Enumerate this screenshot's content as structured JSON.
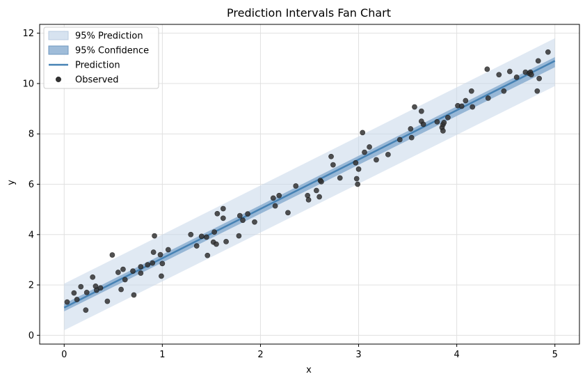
{
  "chart_data": {
    "type": "scatter",
    "title": "Prediction Intervals Fan Chart",
    "xlabel": "x",
    "ylabel": "y",
    "xlim": [
      -0.25,
      5.25
    ],
    "ylim": [
      -0.35,
      12.35
    ],
    "xticks": [
      0,
      1,
      2,
      3,
      4,
      5
    ],
    "yticks": [
      0,
      2,
      4,
      6,
      8,
      10,
      12
    ],
    "grid": true,
    "legend_position": "top-left",
    "colors": {
      "prediction_band": "#c6d7e9",
      "confidence_band": "#7fa6cc",
      "prediction_line": "#4682b4",
      "observed": "#333333"
    },
    "fit": {
      "intercept": 1.1,
      "slope": 1.96
    },
    "prediction_interval": {
      "x": [
        0,
        5
      ],
      "lower": [
        0.2,
        9.9
      ],
      "upper": [
        2.05,
        11.8
      ]
    },
    "confidence_interval": {
      "x": [
        0,
        5
      ],
      "lower": [
        0.95,
        10.65
      ],
      "upper": [
        1.25,
        11.05
      ]
    },
    "legend": [
      {
        "label": "95% Prediction",
        "kind": "band-light"
      },
      {
        "label": "95% Confidence",
        "kind": "band-dark"
      },
      {
        "label": "Prediction",
        "kind": "line"
      },
      {
        "label": "Observed",
        "kind": "marker"
      }
    ],
    "series": [
      {
        "name": "Observed",
        "points": [
          [
            0.03,
            1.32
          ],
          [
            0.1,
            1.68
          ],
          [
            0.13,
            1.42
          ],
          [
            0.17,
            1.93
          ],
          [
            0.22,
            1.0
          ],
          [
            0.23,
            1.7
          ],
          [
            0.29,
            2.31
          ],
          [
            0.32,
            1.95
          ],
          [
            0.33,
            1.79
          ],
          [
            0.37,
            1.88
          ],
          [
            0.44,
            1.35
          ],
          [
            0.49,
            3.19
          ],
          [
            0.55,
            2.5
          ],
          [
            0.58,
            1.82
          ],
          [
            0.6,
            2.62
          ],
          [
            0.62,
            2.21
          ],
          [
            0.7,
            2.55
          ],
          [
            0.71,
            1.6
          ],
          [
            0.78,
            2.72
          ],
          [
            0.78,
            2.47
          ],
          [
            0.85,
            2.8
          ],
          [
            0.9,
            2.87
          ],
          [
            0.91,
            3.3
          ],
          [
            0.92,
            3.95
          ],
          [
            0.98,
            3.2
          ],
          [
            0.99,
            2.35
          ],
          [
            1.0,
            2.85
          ],
          [
            1.06,
            3.4
          ],
          [
            1.29,
            4.0
          ],
          [
            1.35,
            3.55
          ],
          [
            1.4,
            3.93
          ],
          [
            1.45,
            3.9
          ],
          [
            1.46,
            3.17
          ],
          [
            1.52,
            3.7
          ],
          [
            1.53,
            4.1
          ],
          [
            1.55,
            3.62
          ],
          [
            1.56,
            4.83
          ],
          [
            1.62,
            4.65
          ],
          [
            1.62,
            5.03
          ],
          [
            1.65,
            3.72
          ],
          [
            1.78,
            3.95
          ],
          [
            1.79,
            4.75
          ],
          [
            1.82,
            4.57
          ],
          [
            1.87,
            4.82
          ],
          [
            1.94,
            4.5
          ],
          [
            2.13,
            5.45
          ],
          [
            2.15,
            5.14
          ],
          [
            2.19,
            5.55
          ],
          [
            2.28,
            4.87
          ],
          [
            2.36,
            5.93
          ],
          [
            2.48,
            5.55
          ],
          [
            2.49,
            5.38
          ],
          [
            2.57,
            5.75
          ],
          [
            2.6,
            5.5
          ],
          [
            2.61,
            6.15
          ],
          [
            2.62,
            6.1
          ],
          [
            2.72,
            7.1
          ],
          [
            2.74,
            6.77
          ],
          [
            2.81,
            6.25
          ],
          [
            2.97,
            6.85
          ],
          [
            2.98,
            6.22
          ],
          [
            2.99,
            6.0
          ],
          [
            3.0,
            6.6
          ],
          [
            3.04,
            8.05
          ],
          [
            3.06,
            7.27
          ],
          [
            3.11,
            7.48
          ],
          [
            3.18,
            6.97
          ],
          [
            3.3,
            7.18
          ],
          [
            3.42,
            7.77
          ],
          [
            3.53,
            8.2
          ],
          [
            3.54,
            7.85
          ],
          [
            3.57,
            9.07
          ],
          [
            3.64,
            8.9
          ],
          [
            3.64,
            8.5
          ],
          [
            3.66,
            8.38
          ],
          [
            3.8,
            8.48
          ],
          [
            3.85,
            8.25
          ],
          [
            3.86,
            8.12
          ],
          [
            3.86,
            8.37
          ],
          [
            3.87,
            8.45
          ],
          [
            3.91,
            8.65
          ],
          [
            4.01,
            9.12
          ],
          [
            4.05,
            9.1
          ],
          [
            4.09,
            9.32
          ],
          [
            4.15,
            9.7
          ],
          [
            4.16,
            9.07
          ],
          [
            4.31,
            10.57
          ],
          [
            4.32,
            9.42
          ],
          [
            4.43,
            10.35
          ],
          [
            4.48,
            9.7
          ],
          [
            4.54,
            10.48
          ],
          [
            4.61,
            10.25
          ],
          [
            4.7,
            10.45
          ],
          [
            4.74,
            10.4
          ],
          [
            4.75,
            10.45
          ],
          [
            4.76,
            10.35
          ],
          [
            4.82,
            9.7
          ],
          [
            4.83,
            10.9
          ],
          [
            4.84,
            10.2
          ],
          [
            4.93,
            11.25
          ]
        ]
      }
    ]
  }
}
